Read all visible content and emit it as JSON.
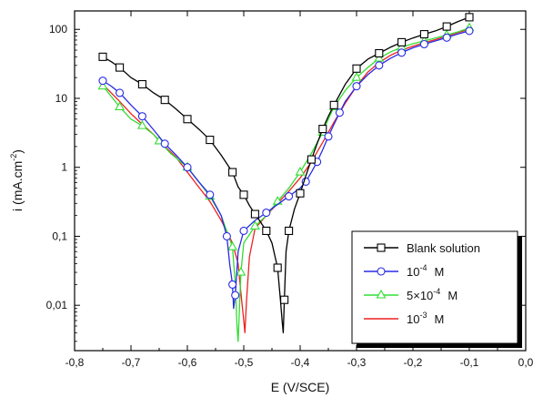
{
  "chart_data": {
    "type": "line",
    "xlabel": "E (V/SCE)",
    "ylabel": "i (mA.cm",
    "ylabel_sup": "-2",
    "ylabel_close": ")",
    "x_scale": "linear",
    "y_scale": "log",
    "xlim": [
      -0.8,
      0.0
    ],
    "ylim": [
      0.0022,
      185
    ],
    "x_ticks": [
      -0.8,
      -0.7,
      -0.6,
      -0.5,
      -0.4,
      -0.3,
      -0.2,
      -0.1,
      0.0
    ],
    "x_tick_labels": [
      "-0,8",
      "-0,7",
      "-0,6",
      "-0,5",
      "-0,4",
      "-0,3",
      "-0,2",
      "-0,1",
      "0,0"
    ],
    "y_ticks": [
      0.01,
      0.1,
      1,
      10,
      100
    ],
    "y_tick_labels": [
      "0,01",
      "0,1",
      "1",
      "10",
      "100"
    ],
    "grid": false,
    "legend_placement": "bottom-right",
    "series": [
      {
        "name": "Blank solution",
        "color": "#000000",
        "marker": "square",
        "x": [
          -0.75,
          -0.735,
          -0.72,
          -0.7,
          -0.68,
          -0.66,
          -0.64,
          -0.62,
          -0.6,
          -0.58,
          -0.56,
          -0.54,
          -0.52,
          -0.51,
          -0.5,
          -0.49,
          -0.48,
          -0.47,
          -0.46,
          -0.45,
          -0.44,
          -0.435,
          -0.432,
          -0.43,
          -0.428,
          -0.425,
          -0.42,
          -0.41,
          -0.4,
          -0.39,
          -0.38,
          -0.37,
          -0.36,
          -0.35,
          -0.34,
          -0.32,
          -0.3,
          -0.28,
          -0.26,
          -0.24,
          -0.22,
          -0.2,
          -0.18,
          -0.16,
          -0.14,
          -0.12,
          -0.1
        ],
        "y": [
          40,
          34,
          28,
          20,
          16,
          12,
          9.5,
          7,
          5,
          3.6,
          2.5,
          1.5,
          0.85,
          0.52,
          0.4,
          0.28,
          0.21,
          0.16,
          0.12,
          0.08,
          0.035,
          0.012,
          0.006,
          0.004,
          0.012,
          0.06,
          0.12,
          0.25,
          0.42,
          0.75,
          1.3,
          2.2,
          3.6,
          5.5,
          8,
          16,
          27,
          37,
          45,
          55,
          65,
          75,
          85,
          95,
          110,
          130,
          150
        ]
      },
      {
        "name": "10<sup>-4</sup> M",
        "label_base": "10",
        "label_sup": "-4",
        "label_unit": "M",
        "color": "#2a2ae6",
        "marker": "circle",
        "x": [
          -0.75,
          -0.735,
          -0.72,
          -0.7,
          -0.68,
          -0.66,
          -0.64,
          -0.62,
          -0.6,
          -0.58,
          -0.56,
          -0.54,
          -0.53,
          -0.525,
          -0.52,
          -0.518,
          -0.515,
          -0.51,
          -0.5,
          -0.48,
          -0.46,
          -0.44,
          -0.42,
          -0.4,
          -0.39,
          -0.38,
          -0.37,
          -0.36,
          -0.35,
          -0.34,
          -0.33,
          -0.32,
          -0.3,
          -0.28,
          -0.26,
          -0.24,
          -0.22,
          -0.2,
          -0.18,
          -0.16,
          -0.14,
          -0.12,
          -0.1
        ],
        "y": [
          18,
          15,
          12,
          8,
          5.5,
          3.5,
          2.2,
          1.5,
          1.0,
          0.62,
          0.4,
          0.2,
          0.1,
          0.04,
          0.02,
          0.009,
          0.014,
          0.06,
          0.12,
          0.17,
          0.22,
          0.29,
          0.38,
          0.5,
          0.62,
          0.85,
          1.2,
          1.8,
          2.8,
          4.2,
          6.2,
          9,
          15,
          22,
          30,
          38,
          46,
          54,
          61,
          68,
          76,
          86,
          95
        ]
      },
      {
        "name": "5×10<sup>-4</sup> M",
        "label_base": "5×10",
        "label_sup": "-4",
        "label_unit": "M",
        "color": "#33dd33",
        "marker": "triangle",
        "x": [
          -0.75,
          -0.74,
          -0.72,
          -0.7,
          -0.68,
          -0.66,
          -0.65,
          -0.63,
          -0.6,
          -0.58,
          -0.56,
          -0.54,
          -0.52,
          -0.515,
          -0.512,
          -0.51,
          -0.505,
          -0.5,
          -0.48,
          -0.46,
          -0.44,
          -0.42,
          -0.4,
          -0.38,
          -0.36,
          -0.35,
          -0.34,
          -0.32,
          -0.3,
          -0.28,
          -0.26,
          -0.24,
          -0.22,
          -0.2,
          -0.18,
          -0.16,
          -0.14,
          -0.12,
          -0.1
        ],
        "y": [
          15,
          12,
          7.5,
          5,
          4,
          3,
          2.4,
          1.6,
          1.0,
          0.62,
          0.38,
          0.2,
          0.07,
          0.02,
          0.005,
          0.003,
          0.03,
          0.08,
          0.14,
          0.2,
          0.32,
          0.5,
          0.85,
          1.6,
          3.2,
          5,
          7.5,
          13,
          20,
          28,
          38,
          47,
          55,
          62,
          68,
          75,
          83,
          92,
          105
        ]
      },
      {
        "name": "10<sup>-3</sup> M",
        "label_base": "10",
        "label_sup": "-3",
        "label_unit": "M",
        "color": "#ee2222",
        "marker": "none",
        "x": [
          -0.75,
          -0.72,
          -0.7,
          -0.68,
          -0.66,
          -0.64,
          -0.62,
          -0.6,
          -0.58,
          -0.56,
          -0.54,
          -0.52,
          -0.51,
          -0.505,
          -0.5,
          -0.498,
          -0.495,
          -0.49,
          -0.48,
          -0.46,
          -0.44,
          -0.42,
          -0.4,
          -0.38,
          -0.36,
          -0.34,
          -0.32,
          -0.3,
          -0.28,
          -0.26,
          -0.24,
          -0.22,
          -0.2,
          -0.18,
          -0.16,
          -0.14,
          -0.12,
          -0.1
        ],
        "y": [
          16,
          9,
          6,
          4.2,
          3.0,
          2.0,
          1.4,
          0.85,
          0.52,
          0.32,
          0.17,
          0.08,
          0.04,
          0.015,
          0.006,
          0.004,
          0.012,
          0.05,
          0.13,
          0.2,
          0.3,
          0.45,
          0.7,
          1.2,
          2.3,
          4.5,
          8.5,
          15,
          24,
          33,
          42,
          50,
          57,
          64,
          71,
          80,
          90,
          100
        ]
      }
    ]
  }
}
